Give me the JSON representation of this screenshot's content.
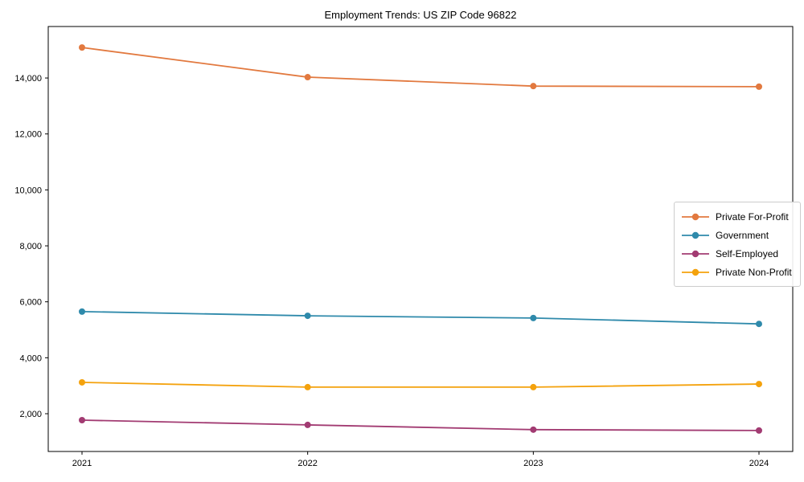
{
  "page": {
    "background": "#ffffff",
    "axis_color": "#000000",
    "legend_border_color": "#cccccc"
  },
  "chart_data": {
    "type": "line",
    "title": "Employment Trends: US ZIP Code 96822",
    "x": [
      2021,
      2022,
      2023,
      2024
    ],
    "x_tick_labels": [
      "2021",
      "2022",
      "2023",
      "2024"
    ],
    "series": [
      {
        "name": "Private For-Profit",
        "color": "#E2793F",
        "values": [
          15090,
          14030,
          13710,
          13690
        ]
      },
      {
        "name": "Government",
        "color": "#2F8AAB",
        "values": [
          5650,
          5500,
          5420,
          5210
        ]
      },
      {
        "name": "Self-Employed",
        "color": "#A23B72",
        "values": [
          1770,
          1600,
          1430,
          1400
        ]
      },
      {
        "name": "Private Non-Profit",
        "color": "#F4A20D",
        "values": [
          3120,
          2950,
          2950,
          3060
        ]
      }
    ],
    "ylim": [
      650,
      15840
    ],
    "y_ticks": [
      2000,
      4000,
      6000,
      8000,
      10000,
      12000,
      14000
    ],
    "y_tick_labels": [
      "2,000",
      "4,000",
      "6,000",
      "8,000",
      "10,000",
      "12,000",
      "14,000"
    ],
    "xlabel": "",
    "ylabel": "",
    "grid": false,
    "legend_position": "center-right",
    "marker": "circle"
  }
}
